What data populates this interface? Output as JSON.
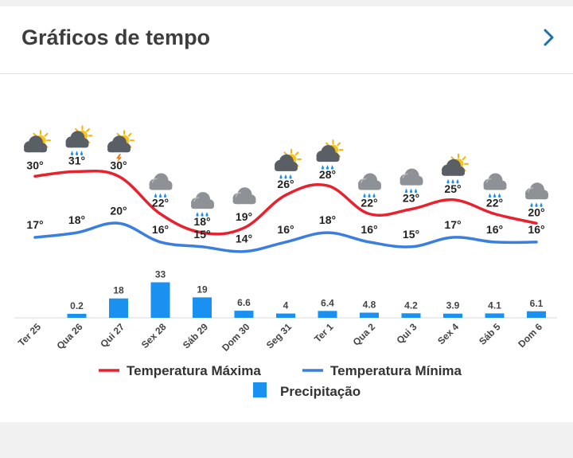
{
  "header": {
    "title": "Gráficos de tempo"
  },
  "chart_data": {
    "type": "line",
    "categories": [
      "Ter 25",
      "Qua 26",
      "Qui 27",
      "Sex 28",
      "Sáb 29",
      "Dom 30",
      "Seg 31",
      "Ter 1",
      "Qua 2",
      "Qui 3",
      "Sex 4",
      "Sáb 5",
      "Dom 6"
    ],
    "series": [
      {
        "name": "Temperatura Máxima",
        "type": "line",
        "color": "#e8212e",
        "values": [
          30,
          31,
          30,
          22,
          18,
          19,
          26,
          28,
          22,
          23,
          25,
          22,
          20
        ],
        "labels": [
          "30°",
          "31°",
          "30°",
          "22°",
          "18°",
          "19°",
          "26°",
          "28°",
          "22°",
          "23°",
          "25°",
          "22°",
          "20°"
        ]
      },
      {
        "name": "Temperatura Mínima",
        "type": "line",
        "color": "#3a7ee0",
        "values": [
          17,
          18,
          20,
          16,
          15,
          14,
          16,
          18,
          16,
          15,
          17,
          16,
          16
        ],
        "labels": [
          "17°",
          "18°",
          "20°",
          "16°",
          "15°",
          "14°",
          "16°",
          "18°",
          "16°",
          "15°",
          "17°",
          "16°",
          "16°"
        ]
      },
      {
        "name": "Precipitação",
        "type": "bar",
        "color": "#1a91f0",
        "values": [
          0,
          0.2,
          18,
          33,
          19,
          6.6,
          4,
          6.4,
          4.8,
          4.2,
          3.9,
          4.1,
          6.1
        ],
        "labels": [
          "",
          "0.2",
          "18",
          "33",
          "19",
          "6.6",
          "4",
          "6.4",
          "4.8",
          "4.2",
          "3.9",
          "4.1",
          "6.1"
        ]
      }
    ],
    "icons": [
      "cloud-sun-icon",
      "cloud-sun-rain-icon",
      "cloud-sun-storm-icon",
      "cloud-rain-icon",
      "cloud-rain-icon",
      "cloud-icon",
      "cloud-sun-rain-icon",
      "cloud-sun-rain-icon",
      "cloud-rain-icon",
      "cloud-rain-icon",
      "cloud-sun-rain-icon",
      "cloud-rain-icon",
      "cloud-rain-icon"
    ],
    "legend": {
      "max": "Temperatura Máxima",
      "min": "Temperatura Mínima",
      "precip": "Precipitação"
    }
  }
}
